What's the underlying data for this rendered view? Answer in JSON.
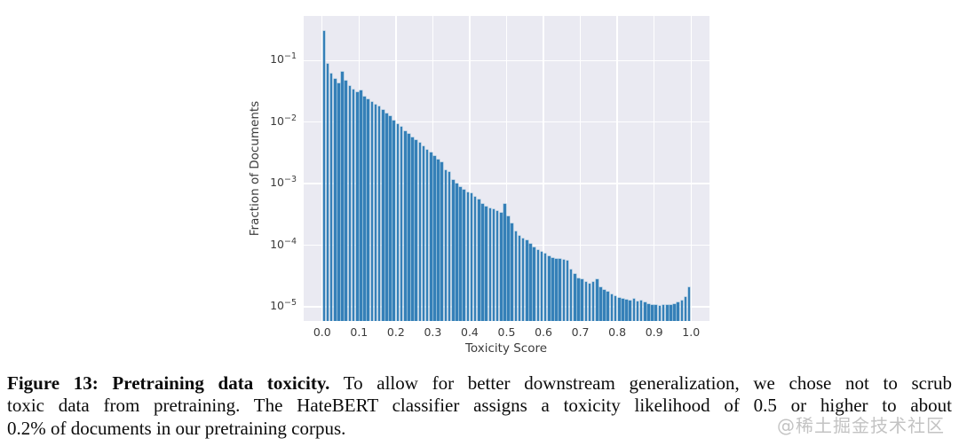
{
  "watermark": "@稀土掘金技术社区",
  "caption": {
    "bold": "Figure 13: Pretraining data toxicity.",
    "line1_rest": " To allow for better downstream generalization, we chose not to scrub",
    "line2": "toxic data from pretraining. The HateBERT classifier assigns a toxicity likelihood of 0.5 or higher to about",
    "line3": "0.2% of documents in our pretraining corpus."
  },
  "chart_data": {
    "type": "bar",
    "title": "",
    "xlabel": "Toxicity Score",
    "ylabel": "Fraction of Documents",
    "x_tick_labels": [
      "0.0",
      "0.1",
      "0.2",
      "0.3",
      "0.4",
      "0.5",
      "0.6",
      "0.7",
      "0.8",
      "0.9",
      "1.0"
    ],
    "y_tick_labels": [
      "10^-1",
      "10^-2",
      "10^-3",
      "10^-4",
      "10^-5"
    ],
    "y_scale": "log",
    "grid": true,
    "legend_position": "none",
    "x_range": [
      -0.05,
      1.05
    ],
    "y_range": [
      5.9e-06,
      0.53
    ],
    "bin_width": 0.01,
    "x": [
      0.0,
      0.01,
      0.02,
      0.03,
      0.04,
      0.05,
      0.06,
      0.07,
      0.08,
      0.09,
      0.1,
      0.11,
      0.12,
      0.13,
      0.14,
      0.15,
      0.16,
      0.17,
      0.18,
      0.19,
      0.2,
      0.21,
      0.22,
      0.23,
      0.24,
      0.25,
      0.26,
      0.27,
      0.28,
      0.29,
      0.3,
      0.31,
      0.32,
      0.33,
      0.34,
      0.35,
      0.36,
      0.37,
      0.38,
      0.39,
      0.4,
      0.41,
      0.42,
      0.43,
      0.44,
      0.45,
      0.46,
      0.47,
      0.48,
      0.49,
      0.5,
      0.51,
      0.52,
      0.53,
      0.54,
      0.55,
      0.56,
      0.57,
      0.58,
      0.59,
      0.6,
      0.61,
      0.62,
      0.63,
      0.64,
      0.65,
      0.66,
      0.67,
      0.68,
      0.69,
      0.7,
      0.71,
      0.72,
      0.73,
      0.74,
      0.75,
      0.76,
      0.77,
      0.78,
      0.79,
      0.8,
      0.81,
      0.82,
      0.83,
      0.84,
      0.85,
      0.86,
      0.87,
      0.88,
      0.89,
      0.9,
      0.91,
      0.92,
      0.93,
      0.94,
      0.95,
      0.96,
      0.97,
      0.98,
      0.99
    ],
    "values": [
      0.3,
      0.088,
      0.061,
      0.051,
      0.042,
      0.066,
      0.047,
      0.038,
      0.034,
      0.031,
      0.033,
      0.026,
      0.0235,
      0.021,
      0.019,
      0.018,
      0.016,
      0.014,
      0.0125,
      0.0105,
      0.0092,
      0.0083,
      0.0072,
      0.0064,
      0.0057,
      0.0051,
      0.0046,
      0.0041,
      0.0036,
      0.0032,
      0.0028,
      0.0025,
      0.0022,
      0.00165,
      0.00155,
      0.00115,
      0.001,
      0.00088,
      0.00081,
      0.00073,
      0.0007,
      0.00061,
      0.00055,
      0.00047,
      0.00043,
      0.0004,
      0.00038,
      0.00036,
      0.00034,
      0.00047,
      0.0003,
      0.00023,
      0.00017,
      0.00014,
      0.00013,
      0.00012,
      0.000105,
      9.2e-05,
      8.4e-05,
      7.8e-05,
      7.3e-05,
      6.6e-05,
      6.2e-05,
      6.1e-05,
      6e-05,
      5.9e-05,
      5.7e-05,
      4e-05,
      3.4e-05,
      2.9e-05,
      2.8e-05,
      2.5e-05,
      2.4e-05,
      2.5e-05,
      2.8e-05,
      2.1e-05,
      1.9e-05,
      1.75e-05,
      1.6e-05,
      1.5e-05,
      1.42e-05,
      1.35e-05,
      1.3e-05,
      1.25e-05,
      1.35e-05,
      1.22e-05,
      1.25e-05,
      1.18e-05,
      1.12e-05,
      1.08e-05,
      1.06e-05,
      1.05e-05,
      1.07e-05,
      1.06e-05,
      1.08e-05,
      1.12e-05,
      1.18e-05,
      1.28e-05,
      1.45e-05,
      2.1e-05
    ],
    "colors": {
      "bar": "#3580b8",
      "bar_edge": "#8db9d6",
      "plot_background": "#eaeaf2",
      "gridline": "#ffffff",
      "tick_label": "#3b3b3b"
    }
  }
}
